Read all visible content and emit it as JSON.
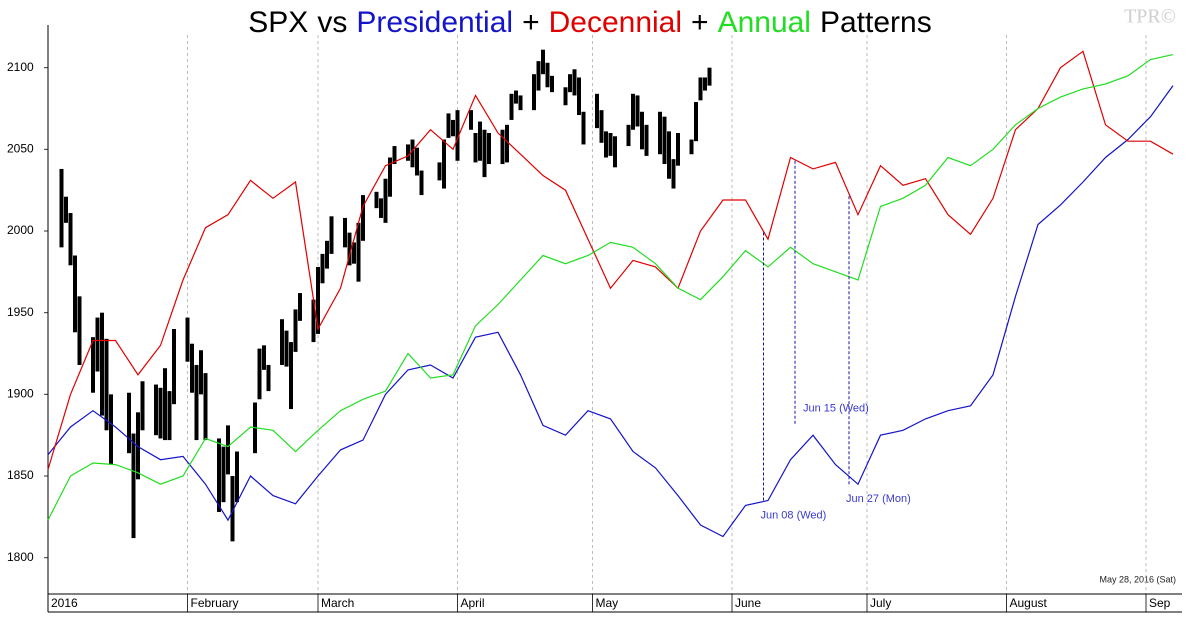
{
  "chart_data": {
    "type": "line",
    "title_joins": [
      "vs",
      "+",
      "+",
      "Patterns"
    ],
    "watermark": "TPR©",
    "date_stamp": "May 28, 2016 (Sat)",
    "xlim": [
      0,
      252
    ],
    "ylim": [
      1779,
      2120
    ],
    "yticks": [
      1800,
      1850,
      1900,
      1950,
      2000,
      2050,
      2100
    ],
    "xticks": [
      {
        "value": 0,
        "label": "2016"
      },
      {
        "value": 31,
        "label": "February"
      },
      {
        "value": 60,
        "label": "March"
      },
      {
        "value": 91,
        "label": "April"
      },
      {
        "value": 121,
        "label": "May"
      },
      {
        "value": 152,
        "label": "June"
      },
      {
        "value": 182,
        "label": "July"
      },
      {
        "value": 213,
        "label": "August"
      },
      {
        "value": 244,
        "label": "Sep"
      }
    ],
    "grid": true,
    "x": [
      0,
      5,
      10,
      15,
      20,
      25,
      30,
      35,
      40,
      45,
      50,
      55,
      60,
      65,
      70,
      75,
      80,
      85,
      90,
      95,
      100,
      105,
      110,
      115,
      120,
      125,
      130,
      135,
      140,
      145,
      150,
      155,
      160,
      165,
      170,
      175,
      180,
      185,
      190,
      195,
      200,
      205,
      210,
      215,
      220,
      225,
      230,
      235,
      240,
      245,
      250
    ],
    "series": [
      {
        "name": "SPX",
        "type": "hilo",
        "color": "#000000",
        "x": [
          3,
          4,
          5,
          6,
          7,
          10,
          11,
          12,
          13,
          14,
          18,
          19,
          20,
          21,
          24,
          25,
          26,
          27,
          28,
          31,
          32,
          33,
          34,
          35,
          38,
          39,
          40,
          41,
          42,
          46,
          47,
          48,
          49,
          52,
          53,
          54,
          55,
          56,
          59,
          60,
          61,
          62,
          63,
          66,
          67,
          68,
          69,
          70,
          73,
          74,
          75,
          76,
          77,
          80,
          81,
          82,
          83,
          87,
          88,
          89,
          90,
          91,
          94,
          95,
          96,
          97,
          98,
          101,
          102,
          103,
          104,
          105,
          108,
          109,
          110,
          111,
          112,
          115,
          116,
          117,
          118,
          119,
          122,
          123,
          124,
          125,
          126,
          129,
          130,
          131,
          132,
          133,
          136,
          137,
          138,
          139,
          140,
          143,
          144,
          145,
          146,
          147
        ],
        "high": [
          2038,
          2021,
          2011,
          1985,
          1960,
          1935,
          1947,
          1950,
          1934,
          1900,
          1901,
          1876,
          1889,
          1908,
          1906,
          1904,
          1916,
          1902,
          1940,
          1947,
          1931,
          1918,
          1927,
          1913,
          1873,
          1868,
          1881,
          1850,
          1865,
          1895,
          1928,
          1930,
          1918,
          1946,
          1939,
          1932,
          1952,
          1962,
          1958,
          1978,
          1986,
          1994,
          2009,
          2008,
          1999,
          1993,
          2005,
          2022,
          2024,
          2020,
          2032,
          2045,
          2052,
          2053,
          2056,
          2051,
          2037,
          2042,
          2056,
          2072,
          2068,
          2074,
          2074,
          2060,
          2067,
          2062,
          2060,
          2062,
          2065,
          2084,
          2086,
          2083,
          2096,
          2104,
          2111,
          2103,
          2095,
          2088,
          2096,
          2099,
          2094,
          2073,
          2084,
          2074,
          2061,
          2060,
          2058,
          2065,
          2084,
          2083,
          2073,
          2065,
          2073,
          2070,
          2061,
          2044,
          2060,
          2056,
          2079,
          2094,
          2094,
          2100
        ],
        "low": [
          1990,
          2005,
          1979,
          1938,
          1918,
          1901,
          1914,
          1887,
          1878,
          1857,
          1864,
          1812,
          1848,
          1878,
          1875,
          1873,
          1872,
          1872,
          1894,
          1920,
          1901,
          1872,
          1900,
          1872,
          1828,
          1834,
          1851,
          1810,
          1834,
          1864,
          1897,
          1915,
          1902,
          1918,
          1917,
          1891,
          1926,
          1945,
          1932,
          1937,
          1968,
          1977,
          1986,
          1990,
          1979,
          1980,
          1969,
          1994,
          2014,
          2008,
          2005,
          2021,
          2041,
          2043,
          2039,
          2034,
          2022,
          2031,
          2026,
          2057,
          2058,
          2043,
          2062,
          2042,
          2043,
          2033,
          2041,
          2041,
          2042,
          2068,
          2078,
          2074,
          2074,
          2086,
          2096,
          2088,
          2085,
          2077,
          2085,
          2083,
          2071,
          2053,
          2063,
          2054,
          2045,
          2046,
          2039,
          2052,
          2062,
          2064,
          2050,
          2046,
          2047,
          2041,
          2032,
          2026,
          2040,
          2047,
          2055,
          2080,
          2086,
          2089
        ]
      },
      {
        "name": "Presidential",
        "color": "#1414c8",
        "values": [
          1863,
          1880,
          1890,
          1880,
          1868,
          1860,
          1862,
          1845,
          1823,
          1850,
          1838,
          1833,
          1850,
          1866,
          1872,
          1900,
          1915,
          1918,
          1910,
          1935,
          1938,
          1912,
          1881,
          1875,
          1890,
          1885,
          1865,
          1855,
          1838,
          1820,
          1813,
          1832,
          1835,
          1860,
          1875,
          1857,
          1845,
          1875,
          1878,
          1885,
          1890,
          1893,
          1912,
          1960,
          2004,
          2016,
          2030,
          2045,
          2056,
          2070,
          2089
        ]
      },
      {
        "name": "Decennial",
        "color": "#e00000",
        "values": [
          1854,
          1900,
          1933,
          1933,
          1912,
          1930,
          1970,
          2002,
          2010,
          2031,
          2020,
          2030,
          1940,
          1965,
          2015,
          2040,
          2046,
          2062,
          2050,
          2083,
          2060,
          2047,
          2034,
          2025,
          1995,
          1965,
          1982,
          1978,
          1965,
          2000,
          2019,
          2019,
          1995,
          2045,
          2038,
          2042,
          2010,
          2040,
          2028,
          2032,
          2010,
          1998,
          2020,
          2062,
          2075,
          2100,
          2110,
          2065,
          2055,
          2055,
          2047
        ]
      },
      {
        "name": "Annual",
        "color": "#22dd22",
        "values": [
          1823,
          1850,
          1858,
          1857,
          1852,
          1845,
          1850,
          1873,
          1868,
          1880,
          1878,
          1865,
          1878,
          1890,
          1897,
          1902,
          1925,
          1910,
          1912,
          1942,
          1955,
          1970,
          1985,
          1980,
          1985,
          1993,
          1990,
          1980,
          1965,
          1958,
          1972,
          1988,
          1978,
          1990,
          1980,
          1975,
          1970,
          2015,
          2020,
          2028,
          2045,
          2040,
          2050,
          2065,
          2075,
          2082,
          2087,
          2090,
          2095,
          2105,
          2108
        ]
      }
    ],
    "annotations": [
      {
        "text": "Jun 08 (Wed)",
        "x": 159,
        "y": 1835
      },
      {
        "text": "Jun 15 (Wed)",
        "x": 166,
        "y": 1882
      },
      {
        "text": "Jun 27 (Mon)",
        "x": 178,
        "y": 1845
      }
    ]
  }
}
